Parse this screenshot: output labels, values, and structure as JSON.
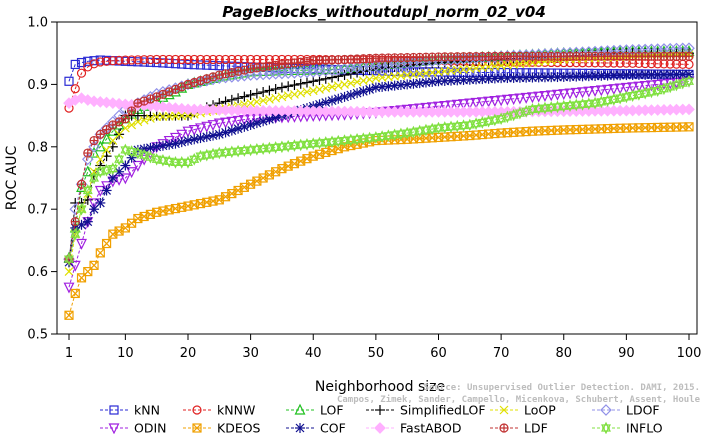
{
  "chart_data": {
    "type": "line",
    "title": "PageBlocks_withoutdupl_norm_02_v04",
    "xlabel": "Neighborhood size",
    "ylabel": "ROC AUC",
    "xlim": [
      1,
      100
    ],
    "ylim": [
      0.5,
      1.0
    ],
    "xticks": [
      "1",
      "10",
      "20",
      "30",
      "40",
      "50",
      "60",
      "70",
      "80",
      "90",
      "100"
    ],
    "yticks": [
      "0.5",
      "0.6",
      "0.7",
      "0.8",
      "0.9",
      "1.0"
    ],
    "grid": false,
    "legend_position": "bottom",
    "watermark": [
      "Source: Unsupervised Outlier Detection. DAMI, 2015.",
      "Campos, Zimek, Sander, Campello, Micenkova, Schubert, Assent, Houle"
    ],
    "series": [
      {
        "name": "kNN",
        "color": "#2a2ad4",
        "marker": "square",
        "points": [
          [
            1,
            0.905
          ],
          [
            2,
            0.932
          ],
          [
            3,
            0.935
          ],
          [
            4,
            0.937
          ],
          [
            5,
            0.938
          ],
          [
            6,
            0.939
          ],
          [
            8,
            0.938
          ],
          [
            10,
            0.937
          ],
          [
            15,
            0.935
          ],
          [
            20,
            0.932
          ],
          [
            25,
            0.93
          ],
          [
            30,
            0.928
          ],
          [
            35,
            0.926
          ],
          [
            40,
            0.925
          ],
          [
            45,
            0.923
          ],
          [
            50,
            0.922
          ],
          [
            55,
            0.92
          ],
          [
            60,
            0.92
          ],
          [
            65,
            0.919
          ],
          [
            70,
            0.919
          ],
          [
            80,
            0.918
          ],
          [
            90,
            0.917
          ],
          [
            100,
            0.916
          ]
        ]
      },
      {
        "name": "kNNW",
        "color": "#e02020",
        "marker": "circle",
        "points": [
          [
            1,
            0.862
          ],
          [
            2,
            0.893
          ],
          [
            3,
            0.918
          ],
          [
            4,
            0.928
          ],
          [
            5,
            0.933
          ],
          [
            6,
            0.936
          ],
          [
            8,
            0.938
          ],
          [
            10,
            0.939
          ],
          [
            15,
            0.94
          ],
          [
            20,
            0.94
          ],
          [
            30,
            0.94
          ],
          [
            40,
            0.94
          ],
          [
            50,
            0.939
          ],
          [
            60,
            0.938
          ],
          [
            70,
            0.936
          ],
          [
            80,
            0.935
          ],
          [
            90,
            0.934
          ],
          [
            100,
            0.932
          ]
        ]
      },
      {
        "name": "LOF",
        "color": "#20c020",
        "marker": "triangle-up",
        "points": [
          [
            1,
            0.622
          ],
          [
            2,
            0.67
          ],
          [
            3,
            0.735
          ],
          [
            4,
            0.76
          ],
          [
            5,
            0.79
          ],
          [
            6,
            0.8
          ],
          [
            8,
            0.825
          ],
          [
            10,
            0.845
          ],
          [
            12,
            0.86
          ],
          [
            15,
            0.875
          ],
          [
            18,
            0.888
          ],
          [
            20,
            0.9
          ],
          [
            25,
            0.912
          ],
          [
            30,
            0.92
          ],
          [
            35,
            0.922
          ],
          [
            40,
            0.923
          ],
          [
            45,
            0.925
          ],
          [
            50,
            0.93
          ],
          [
            60,
            0.94
          ],
          [
            70,
            0.945
          ],
          [
            80,
            0.95
          ],
          [
            90,
            0.952
          ],
          [
            100,
            0.953
          ]
        ]
      },
      {
        "name": "SimplifiedLOF",
        "color": "#000000",
        "marker": "plus",
        "points": [
          [
            1,
            0.615
          ],
          [
            2,
            0.71
          ],
          [
            3,
            0.71
          ],
          [
            4,
            0.715
          ],
          [
            5,
            0.755
          ],
          [
            6,
            0.77
          ],
          [
            8,
            0.8
          ],
          [
            9,
            0.82
          ],
          [
            10,
            0.85
          ],
          [
            12,
            0.85
          ],
          [
            15,
            0.85
          ],
          [
            20,
            0.85
          ],
          [
            22,
            0.86
          ],
          [
            25,
            0.87
          ],
          [
            30,
            0.883
          ],
          [
            35,
            0.895
          ],
          [
            40,
            0.905
          ],
          [
            45,
            0.915
          ],
          [
            50,
            0.925
          ],
          [
            60,
            0.935
          ],
          [
            70,
            0.94
          ],
          [
            80,
            0.945
          ],
          [
            90,
            0.95
          ],
          [
            100,
            0.95
          ]
        ]
      },
      {
        "name": "LoOP",
        "color": "#e0e000",
        "marker": "x",
        "points": [
          [
            1,
            0.6
          ],
          [
            2,
            0.66
          ],
          [
            3,
            0.7
          ],
          [
            4,
            0.725
          ],
          [
            5,
            0.76
          ],
          [
            6,
            0.78
          ],
          [
            8,
            0.81
          ],
          [
            10,
            0.83
          ],
          [
            12,
            0.84
          ],
          [
            15,
            0.848
          ],
          [
            20,
            0.85
          ],
          [
            25,
            0.86
          ],
          [
            30,
            0.87
          ],
          [
            35,
            0.88
          ],
          [
            40,
            0.89
          ],
          [
            45,
            0.9
          ],
          [
            50,
            0.91
          ],
          [
            60,
            0.92
          ],
          [
            70,
            0.93
          ],
          [
            80,
            0.94
          ],
          [
            90,
            0.945
          ],
          [
            100,
            0.948
          ]
        ]
      },
      {
        "name": "LDOF",
        "color": "#9090e8",
        "marker": "diamond",
        "points": [
          [
            1,
            0.62
          ],
          [
            2,
            0.7
          ],
          [
            3,
            0.74
          ],
          [
            4,
            0.78
          ],
          [
            5,
            0.8
          ],
          [
            6,
            0.82
          ],
          [
            8,
            0.84
          ],
          [
            10,
            0.86
          ],
          [
            12,
            0.87
          ],
          [
            15,
            0.885
          ],
          [
            20,
            0.9
          ],
          [
            25,
            0.91
          ],
          [
            30,
            0.915
          ],
          [
            40,
            0.92
          ],
          [
            50,
            0.93
          ],
          [
            60,
            0.938
          ],
          [
            70,
            0.945
          ],
          [
            80,
            0.95
          ],
          [
            90,
            0.955
          ],
          [
            100,
            0.958
          ]
        ]
      },
      {
        "name": "ODIN",
        "color": "#a020e0",
        "marker": "triangle-down",
        "points": [
          [
            1,
            0.575
          ],
          [
            2,
            0.61
          ],
          [
            3,
            0.645
          ],
          [
            4,
            0.68
          ],
          [
            5,
            0.71
          ],
          [
            6,
            0.73
          ],
          [
            8,
            0.745
          ],
          [
            10,
            0.75
          ],
          [
            12,
            0.77
          ],
          [
            15,
            0.8
          ],
          [
            20,
            0.825
          ],
          [
            25,
            0.838
          ],
          [
            30,
            0.845
          ],
          [
            40,
            0.85
          ],
          [
            45,
            0.852
          ],
          [
            50,
            0.855
          ],
          [
            55,
            0.86
          ],
          [
            60,
            0.865
          ],
          [
            65,
            0.87
          ],
          [
            70,
            0.875
          ],
          [
            75,
            0.88
          ],
          [
            80,
            0.885
          ],
          [
            90,
            0.895
          ],
          [
            100,
            0.905
          ]
        ]
      },
      {
        "name": "KDEOS",
        "color": "#f0a000",
        "marker": "square-x",
        "points": [
          [
            1,
            0.53
          ],
          [
            2,
            0.565
          ],
          [
            3,
            0.59
          ],
          [
            4,
            0.6
          ],
          [
            5,
            0.61
          ],
          [
            6,
            0.63
          ],
          [
            8,
            0.66
          ],
          [
            10,
            0.67
          ],
          [
            12,
            0.685
          ],
          [
            15,
            0.695
          ],
          [
            20,
            0.705
          ],
          [
            25,
            0.715
          ],
          [
            30,
            0.74
          ],
          [
            35,
            0.765
          ],
          [
            40,
            0.785
          ],
          [
            45,
            0.8
          ],
          [
            50,
            0.81
          ],
          [
            55,
            0.812
          ],
          [
            60,
            0.815
          ],
          [
            65,
            0.818
          ],
          [
            70,
            0.822
          ],
          [
            75,
            0.825
          ],
          [
            80,
            0.827
          ],
          [
            90,
            0.83
          ],
          [
            100,
            0.832
          ]
        ]
      },
      {
        "name": "COF",
        "color": "#101090",
        "marker": "asterisk",
        "points": [
          [
            1,
            0.615
          ],
          [
            2,
            0.67
          ],
          [
            3,
            0.675
          ],
          [
            4,
            0.68
          ],
          [
            5,
            0.7
          ],
          [
            6,
            0.71
          ],
          [
            8,
            0.75
          ],
          [
            10,
            0.77
          ],
          [
            12,
            0.795
          ],
          [
            15,
            0.8
          ],
          [
            18,
            0.805
          ],
          [
            20,
            0.81
          ],
          [
            25,
            0.82
          ],
          [
            30,
            0.835
          ],
          [
            35,
            0.85
          ],
          [
            40,
            0.865
          ],
          [
            45,
            0.88
          ],
          [
            50,
            0.895
          ],
          [
            60,
            0.905
          ],
          [
            70,
            0.91
          ],
          [
            80,
            0.912
          ],
          [
            90,
            0.915
          ],
          [
            100,
            0.916
          ]
        ]
      },
      {
        "name": "FastABOD",
        "color": "#ffb0ff",
        "marker": "diamond-filled",
        "points": [
          [
            1,
            0.87
          ],
          [
            2,
            0.875
          ],
          [
            3,
            0.878
          ],
          [
            4,
            0.875
          ],
          [
            5,
            0.873
          ],
          [
            6,
            0.872
          ],
          [
            8,
            0.87
          ],
          [
            10,
            0.868
          ],
          [
            15,
            0.865
          ],
          [
            20,
            0.86
          ],
          [
            30,
            0.858
          ],
          [
            40,
            0.857
          ],
          [
            50,
            0.856
          ],
          [
            60,
            0.856
          ],
          [
            70,
            0.856
          ],
          [
            80,
            0.857
          ],
          [
            90,
            0.858
          ],
          [
            100,
            0.86
          ]
        ]
      },
      {
        "name": "LDF",
        "color": "#c03030",
        "marker": "circle-plus",
        "points": [
          [
            1,
            0.62
          ],
          [
            2,
            0.68
          ],
          [
            3,
            0.74
          ],
          [
            4,
            0.79
          ],
          [
            5,
            0.81
          ],
          [
            6,
            0.82
          ],
          [
            8,
            0.835
          ],
          [
            10,
            0.845
          ],
          [
            12,
            0.87
          ],
          [
            15,
            0.88
          ],
          [
            20,
            0.9
          ],
          [
            25,
            0.915
          ],
          [
            30,
            0.925
          ],
          [
            35,
            0.932
          ],
          [
            40,
            0.938
          ],
          [
            50,
            0.942
          ],
          [
            60,
            0.944
          ],
          [
            70,
            0.945
          ],
          [
            80,
            0.945
          ],
          [
            90,
            0.945
          ],
          [
            100,
            0.945
          ]
        ]
      },
      {
        "name": "INFLO",
        "color": "#80e040",
        "marker": "star",
        "points": [
          [
            1,
            0.62
          ],
          [
            2,
            0.66
          ],
          [
            3,
            0.7
          ],
          [
            4,
            0.73
          ],
          [
            5,
            0.75
          ],
          [
            6,
            0.76
          ],
          [
            8,
            0.765
          ],
          [
            10,
            0.795
          ],
          [
            12,
            0.79
          ],
          [
            15,
            0.78
          ],
          [
            18,
            0.775
          ],
          [
            20,
            0.775
          ],
          [
            22,
            0.785
          ],
          [
            25,
            0.79
          ],
          [
            30,
            0.795
          ],
          [
            35,
            0.8
          ],
          [
            40,
            0.805
          ],
          [
            45,
            0.81
          ],
          [
            50,
            0.815
          ],
          [
            55,
            0.822
          ],
          [
            60,
            0.83
          ],
          [
            65,
            0.835
          ],
          [
            70,
            0.845
          ],
          [
            75,
            0.86
          ],
          [
            80,
            0.865
          ],
          [
            85,
            0.87
          ],
          [
            90,
            0.88
          ],
          [
            95,
            0.89
          ],
          [
            100,
            0.905
          ]
        ]
      }
    ]
  }
}
